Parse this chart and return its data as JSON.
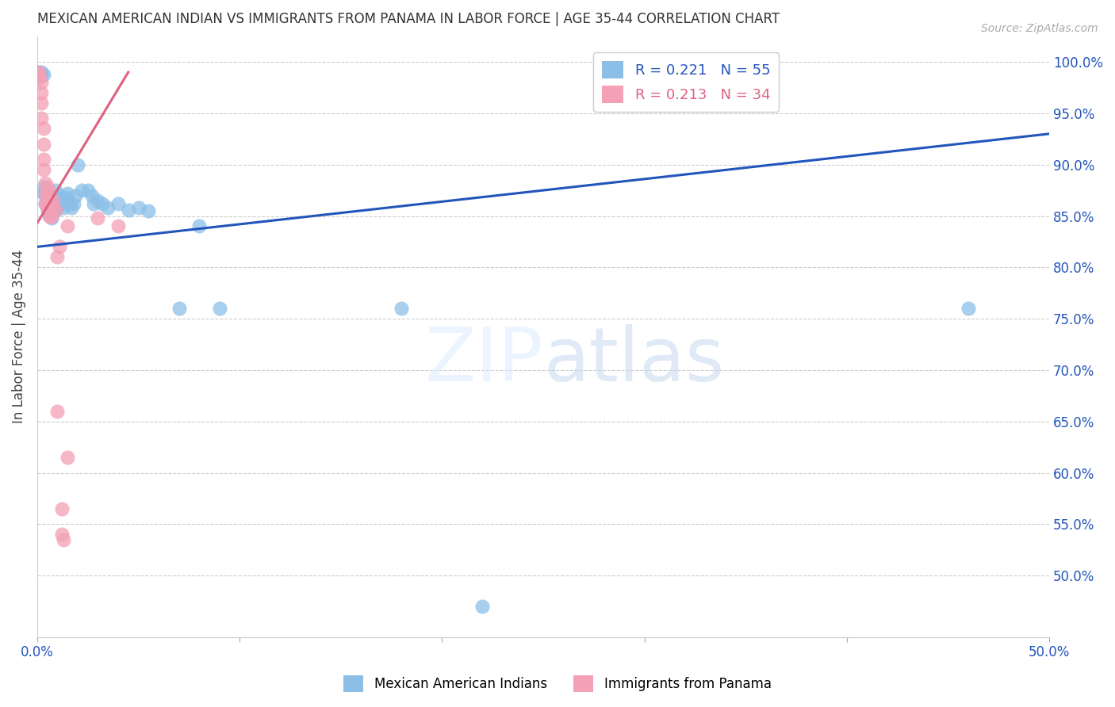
{
  "title": "MEXICAN AMERICAN INDIAN VS IMMIGRANTS FROM PANAMA IN LABOR FORCE | AGE 35-44 CORRELATION CHART",
  "source": "Source: ZipAtlas.com",
  "ylabel": "In Labor Force | Age 35-44",
  "x_min": 0.0,
  "x_max": 0.5,
  "y_min": 0.44,
  "y_max": 1.025,
  "y_ticks": [
    0.5,
    0.55,
    0.6,
    0.65,
    0.7,
    0.75,
    0.8,
    0.85,
    0.9,
    0.95,
    1.0
  ],
  "y_tick_labels": [
    "50.0%",
    "55.0%",
    "60.0%",
    "65.0%",
    "70.0%",
    "75.0%",
    "80.0%",
    "85.0%",
    "90.0%",
    "95.0%",
    "100.0%"
  ],
  "watermark": "ZIPatlas",
  "blue_color": "#8bbfe8",
  "pink_color": "#f4a0b5",
  "blue_line_color": "#2255bb",
  "pink_line_color": "#e06080",
  "grid_color": "#cccccc",
  "background_color": "#ffffff",
  "blue_scatter": [
    [
      0.001,
      0.99
    ],
    [
      0.002,
      0.99
    ],
    [
      0.002,
      0.988
    ],
    [
      0.003,
      0.988
    ],
    [
      0.003,
      0.878
    ],
    [
      0.003,
      0.872
    ],
    [
      0.004,
      0.875
    ],
    [
      0.004,
      0.87
    ],
    [
      0.004,
      0.862
    ],
    [
      0.005,
      0.868
    ],
    [
      0.005,
      0.858
    ],
    [
      0.005,
      0.855
    ],
    [
      0.006,
      0.865
    ],
    [
      0.006,
      0.858
    ],
    [
      0.006,
      0.852
    ],
    [
      0.007,
      0.862
    ],
    [
      0.007,
      0.855
    ],
    [
      0.007,
      0.848
    ],
    [
      0.008,
      0.87
    ],
    [
      0.008,
      0.862
    ],
    [
      0.008,
      0.855
    ],
    [
      0.009,
      0.875
    ],
    [
      0.009,
      0.868
    ],
    [
      0.009,
      0.855
    ],
    [
      0.01,
      0.865
    ],
    [
      0.01,
      0.86
    ],
    [
      0.011,
      0.87
    ],
    [
      0.012,
      0.862
    ],
    [
      0.013,
      0.858
    ],
    [
      0.014,
      0.868
    ],
    [
      0.015,
      0.872
    ],
    [
      0.015,
      0.865
    ],
    [
      0.016,
      0.862
    ],
    [
      0.017,
      0.858
    ],
    [
      0.018,
      0.862
    ],
    [
      0.019,
      0.87
    ],
    [
      0.02,
      0.9
    ],
    [
      0.022,
      0.875
    ],
    [
      0.025,
      0.875
    ],
    [
      0.027,
      0.87
    ],
    [
      0.028,
      0.862
    ],
    [
      0.03,
      0.865
    ],
    [
      0.032,
      0.862
    ],
    [
      0.035,
      0.858
    ],
    [
      0.04,
      0.862
    ],
    [
      0.045,
      0.856
    ],
    [
      0.05,
      0.858
    ],
    [
      0.055,
      0.855
    ],
    [
      0.07,
      0.76
    ],
    [
      0.08,
      0.84
    ],
    [
      0.09,
      0.76
    ],
    [
      0.18,
      0.76
    ],
    [
      0.46,
      0.76
    ],
    [
      0.22,
      0.47
    ]
  ],
  "pink_scatter": [
    [
      0.001,
      0.99
    ],
    [
      0.001,
      0.988
    ],
    [
      0.001,
      0.985
    ],
    [
      0.002,
      0.98
    ],
    [
      0.002,
      0.97
    ],
    [
      0.002,
      0.96
    ],
    [
      0.002,
      0.945
    ],
    [
      0.003,
      0.935
    ],
    [
      0.003,
      0.92
    ],
    [
      0.003,
      0.905
    ],
    [
      0.003,
      0.895
    ],
    [
      0.004,
      0.882
    ],
    [
      0.004,
      0.872
    ],
    [
      0.004,
      0.862
    ],
    [
      0.005,
      0.878
    ],
    [
      0.005,
      0.868
    ],
    [
      0.005,
      0.858
    ],
    [
      0.006,
      0.872
    ],
    [
      0.006,
      0.862
    ],
    [
      0.006,
      0.85
    ],
    [
      0.007,
      0.86
    ],
    [
      0.007,
      0.85
    ],
    [
      0.008,
      0.865
    ],
    [
      0.009,
      0.856
    ],
    [
      0.01,
      0.81
    ],
    [
      0.011,
      0.82
    ],
    [
      0.015,
      0.84
    ],
    [
      0.03,
      0.848
    ],
    [
      0.04,
      0.84
    ],
    [
      0.01,
      0.66
    ],
    [
      0.015,
      0.615
    ],
    [
      0.012,
      0.565
    ],
    [
      0.012,
      0.54
    ],
    [
      0.013,
      0.535
    ]
  ],
  "blue_line_x": [
    0.0,
    0.5
  ],
  "blue_line_y": [
    0.82,
    0.93
  ],
  "pink_line_x": [
    0.0,
    0.045
  ],
  "pink_line_y": [
    0.843,
    0.99
  ]
}
